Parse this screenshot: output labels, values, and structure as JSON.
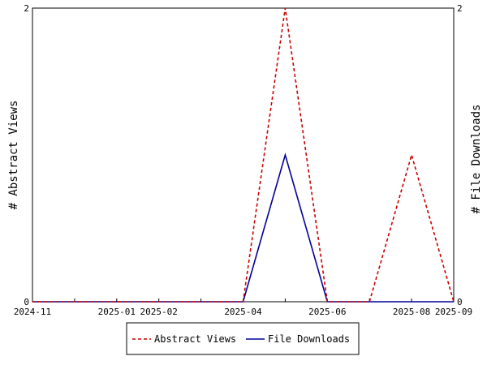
{
  "chart_data": {
    "type": "line",
    "x": [
      "2024-11",
      "2024-12",
      "2025-01",
      "2025-02",
      "2025-03",
      "2025-04",
      "2025-05",
      "2025-06",
      "2025-07",
      "2025-08",
      "2025-09"
    ],
    "x_tick_labels": [
      "2024-11",
      "",
      "2025-01",
      "2025-02",
      "",
      "2025-04",
      "",
      "2025-06",
      "",
      "2025-08",
      "2025-09"
    ],
    "ylabel_left": "# Abstract Views",
    "ylabel_right": "# File Downloads",
    "ylim_left": [
      0,
      2
    ],
    "ylim_right": [
      0,
      2
    ],
    "y_ticks_left": [
      "0",
      "2"
    ],
    "y_ticks_right": [
      "0",
      "2"
    ],
    "grid": false,
    "legend_position": "bottom",
    "series": [
      {
        "name": "Abstract Views",
        "axis": "left",
        "color": "#cc0000",
        "dash": "dashed",
        "values": [
          0,
          0,
          0,
          0,
          0,
          0,
          2,
          0,
          0,
          1,
          0
        ]
      },
      {
        "name": "File Downloads",
        "axis": "right",
        "color": "#000099",
        "dash": "solid",
        "values": [
          0,
          0,
          0,
          0,
          0,
          0,
          1,
          0,
          0,
          0,
          0
        ]
      }
    ]
  }
}
